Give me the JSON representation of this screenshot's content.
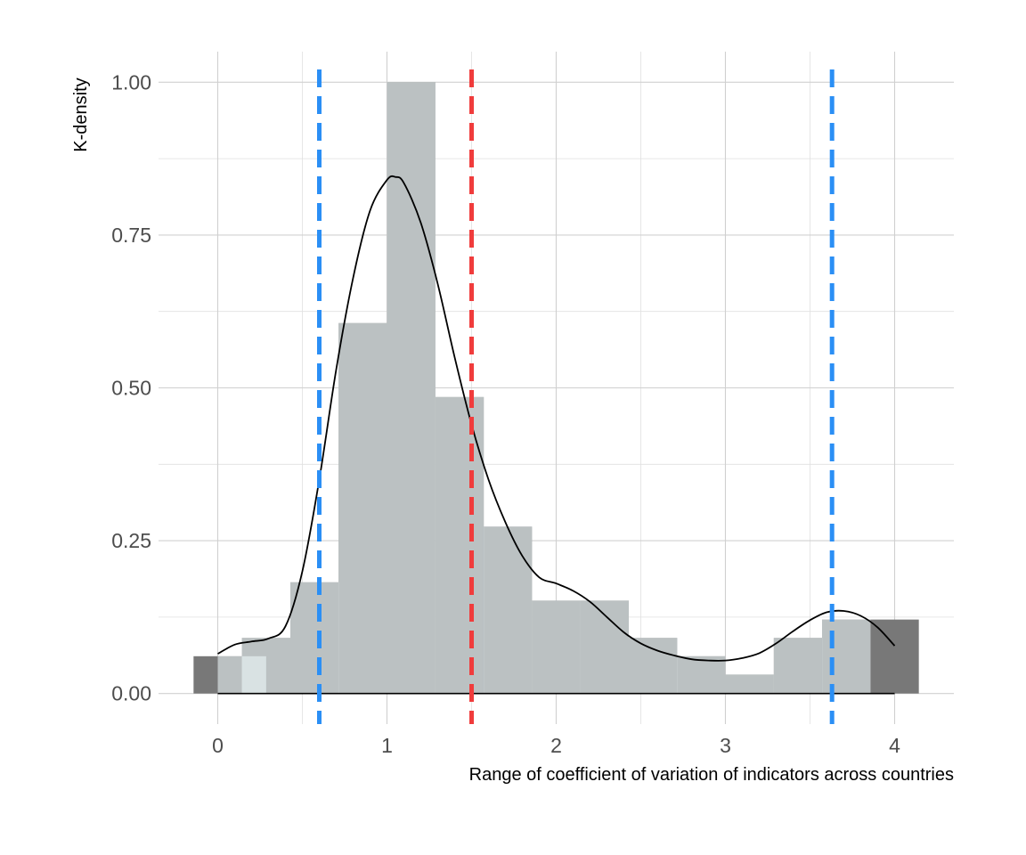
{
  "chart_data": {
    "type": "histogram-density",
    "title": "",
    "xlabel": "Range of coefficient of variation of indicators across countries",
    "ylabel": "K-density",
    "xlim": [
      -0.35,
      4.35
    ],
    "ylim": [
      -0.05,
      1.05
    ],
    "x_ticks": [
      0,
      1,
      2,
      3,
      4
    ],
    "x_tick_labels": [
      "0",
      "1",
      "2",
      "3",
      "4"
    ],
    "y_ticks": [
      0,
      0.25,
      0.5,
      0.75,
      1.0
    ],
    "y_tick_labels": [
      "0.00",
      "0.25",
      "0.50",
      "0.75",
      "1.00"
    ],
    "grid": true,
    "histogram": {
      "bin_width": 0.286,
      "bins_left_edge": [
        -0.143,
        0.143,
        0.429,
        0.714,
        1.0,
        1.286,
        1.571,
        1.857,
        2.143,
        2.429,
        2.714,
        3.0,
        3.286,
        3.571,
        3.857
      ],
      "values": [
        0.061,
        0.091,
        0.182,
        0.606,
        1.0,
        0.485,
        0.273,
        0.152,
        0.152,
        0.091,
        0.061,
        0.031,
        0.091,
        0.121,
        0.121
      ],
      "color": "#787878"
    },
    "density_area": {
      "bin_width": 0.286,
      "bins_left_edge": [
        0.0,
        0.143,
        0.429,
        0.714,
        1.0,
        1.286,
        1.571,
        1.857,
        2.143,
        2.429,
        2.714,
        3.0,
        3.286,
        3.571
      ],
      "values": [
        0.061,
        0.091,
        0.182,
        0.606,
        1.0,
        0.485,
        0.273,
        0.152,
        0.152,
        0.091,
        0.061,
        0.031,
        0.091,
        0.121
      ],
      "fill": "#f3fdff"
    },
    "density_curve": {
      "x": [
        0.0,
        0.1,
        0.2,
        0.3,
        0.4,
        0.5,
        0.6,
        0.7,
        0.8,
        0.9,
        1.0,
        1.05,
        1.1,
        1.2,
        1.3,
        1.4,
        1.5,
        1.6,
        1.7,
        1.8,
        1.9,
        2.0,
        2.1,
        2.2,
        2.3,
        2.4,
        2.5,
        2.6,
        2.7,
        2.8,
        2.9,
        3.0,
        3.1,
        3.2,
        3.3,
        3.4,
        3.5,
        3.6,
        3.7,
        3.8,
        3.9,
        4.0
      ],
      "y": [
        0.065,
        0.08,
        0.085,
        0.09,
        0.11,
        0.2,
        0.35,
        0.53,
        0.68,
        0.79,
        0.84,
        0.845,
        0.835,
        0.77,
        0.67,
        0.55,
        0.44,
        0.35,
        0.28,
        0.225,
        0.19,
        0.18,
        0.168,
        0.15,
        0.125,
        0.1,
        0.082,
        0.07,
        0.062,
        0.056,
        0.054,
        0.054,
        0.058,
        0.066,
        0.082,
        0.102,
        0.12,
        0.133,
        0.135,
        0.127,
        0.108,
        0.078
      ],
      "color": "#000000"
    },
    "vlines": [
      {
        "x": 0.6,
        "color": "#2b8ff5",
        "style": "dashed"
      },
      {
        "x": 1.5,
        "color": "#f03c3c",
        "style": "dashed"
      },
      {
        "x": 3.63,
        "color": "#2b8ff5",
        "style": "dashed"
      }
    ]
  }
}
